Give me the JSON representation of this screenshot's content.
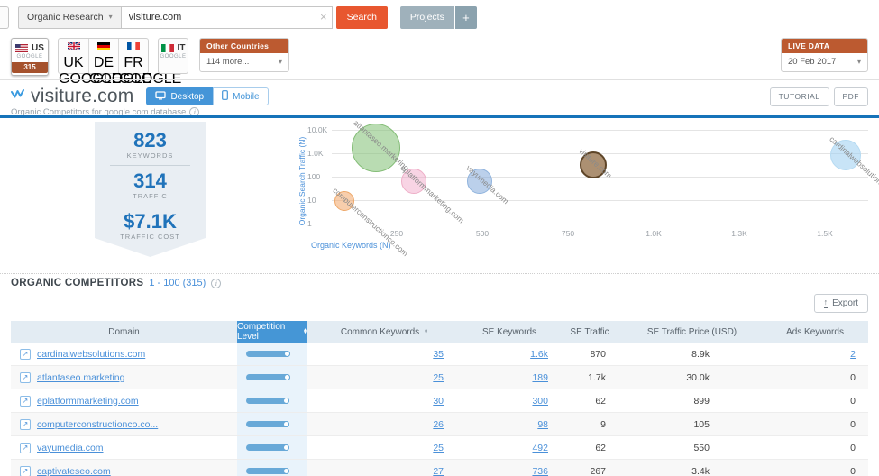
{
  "topbar": {
    "search_type_label": "Organic Research",
    "search_value": "visiture.com",
    "search_button_label": "Search",
    "projects_button_label": "Projects",
    "add_project_button_label": "+"
  },
  "countries": {
    "tabs": [
      {
        "code": "US",
        "engine": "GOOGLE",
        "badge": "315"
      },
      {
        "code": "UK",
        "engine": "GOOGLE"
      },
      {
        "code": "DE",
        "engine": "GOOGLE"
      },
      {
        "code": "FR",
        "engine": "GOOGLE"
      },
      {
        "code": "IT",
        "engine": "GOOGLE"
      }
    ],
    "other_countries_label": "Other Countries",
    "other_countries_value": "114 more...",
    "live_data_label": "LIVE DATA",
    "live_data_value": "20 Feb 2017"
  },
  "header": {
    "domain": "visiture.com",
    "device_desktop": "Desktop",
    "device_mobile": "Mobile",
    "subtitle": "Organic Competitors for google.com database",
    "tutorial_button": "TUTORIAL",
    "pdf_button": "PDF"
  },
  "overview": {
    "stats": [
      {
        "value": "823",
        "label": "KEYWORDS"
      },
      {
        "value": "314",
        "label": "TRAFFIC"
      },
      {
        "value": "$7.1K",
        "label": "TRAFFIC COST"
      }
    ]
  },
  "chart_data": {
    "type": "scatter",
    "xlabel": "Organic Keywords (N)",
    "ylabel": "Organic Search Traffic (N)",
    "x_scale": "linear",
    "y_scale": "log",
    "xlim": [
      0,
      1630
    ],
    "ylim": [
      1,
      10000
    ],
    "grid": "horizontal",
    "legend": "none",
    "x_ticks": [
      {
        "v": 250,
        "label": "250"
      },
      {
        "v": 500,
        "label": "500"
      },
      {
        "v": 750,
        "label": "750"
      },
      {
        "v": 1000,
        "label": "1.0K"
      },
      {
        "v": 1250,
        "label": "1.3K"
      },
      {
        "v": 1500,
        "label": "1.5K"
      }
    ],
    "y_ticks": [
      {
        "v": 1,
        "label": "1"
      },
      {
        "v": 10,
        "label": "10"
      },
      {
        "v": 100,
        "label": "100"
      },
      {
        "v": 1000,
        "label": "1.0K"
      },
      {
        "v": 10000,
        "label": "10.0K"
      }
    ],
    "bubbles": [
      {
        "label": "atlantaseo.marketing",
        "x": 189,
        "y": 1700,
        "r": 27,
        "fill": "rgba(128,191,115,0.55)",
        "stroke": "#84bd77",
        "highlight": false
      },
      {
        "label": "eplatformmarketing.com",
        "x": 300,
        "y": 62,
        "r": 14,
        "fill": "rgba(240,160,195,0.45)",
        "stroke": "#eeaec7",
        "highlight": false
      },
      {
        "label": "computerconstructionco.com",
        "x": 98,
        "y": 9,
        "r": 11,
        "fill": "rgba(242,158,90,0.5)",
        "stroke": "#eda768",
        "highlight": false
      },
      {
        "label": "vayumedia.com",
        "x": 492,
        "y": 62,
        "r": 14,
        "fill": "rgba(120,162,215,0.5)",
        "stroke": "#8fb3dd",
        "highlight": false
      },
      {
        "label": "visiture.com",
        "x": 823,
        "y": 314,
        "r": 15,
        "fill": "rgba(151,116,79,0.8)",
        "stroke": "#5e4528",
        "highlight": true
      },
      {
        "label": "cardinalwebsolutions.com",
        "x": 1560,
        "y": 870,
        "r": 17,
        "fill": "rgba(155,205,240,0.55)",
        "stroke": "#b5daf2",
        "highlight": false
      }
    ]
  },
  "competitors": {
    "title": "ORGANIC COMPETITORS",
    "range": "1 - 100 (315)",
    "export_label": "Export",
    "columns": [
      "Domain",
      "Competition Level",
      "Common Keywords",
      "SE Keywords",
      "SE Traffic",
      "SE Traffic Price (USD)",
      "Ads Keywords"
    ],
    "rows": [
      {
        "domain": "cardinalwebsolutions.com",
        "competition_level": 0.9,
        "common_keywords": "35",
        "se_keywords": "1.6k",
        "se_traffic": "870",
        "se_traffic_price": "8.9k",
        "ads_keywords": "2",
        "ads_keywords_link": true
      },
      {
        "domain": "atlantaseo.marketing",
        "competition_level": 0.9,
        "common_keywords": "25",
        "se_keywords": "189",
        "se_traffic": "1.7k",
        "se_traffic_price": "30.0k",
        "ads_keywords": "0",
        "ads_keywords_link": false
      },
      {
        "domain": "eplatformmarketing.com",
        "competition_level": 0.89,
        "common_keywords": "30",
        "se_keywords": "300",
        "se_traffic": "62",
        "se_traffic_price": "899",
        "ads_keywords": "0",
        "ads_keywords_link": false
      },
      {
        "domain": "computerconstructionco.co...",
        "competition_level": 0.89,
        "common_keywords": "26",
        "se_keywords": "98",
        "se_traffic": "9",
        "se_traffic_price": "105",
        "ads_keywords": "0",
        "ads_keywords_link": false
      },
      {
        "domain": "vayumedia.com",
        "competition_level": 0.88,
        "common_keywords": "25",
        "se_keywords": "492",
        "se_traffic": "62",
        "se_traffic_price": "550",
        "ads_keywords": "0",
        "ads_keywords_link": false
      },
      {
        "domain": "captivateseo.com",
        "competition_level": 0.88,
        "common_keywords": "27",
        "se_keywords": "736",
        "se_traffic": "267",
        "se_traffic_price": "3.4k",
        "ads_keywords": "0",
        "ads_keywords_link": false
      }
    ]
  },
  "icons": {
    "caret_down": "▾",
    "clear": "×",
    "sort_up": "▲",
    "sort_down": "▼",
    "external_link": "↗",
    "info": "i",
    "export_arrow": "↑",
    "add": "+"
  },
  "colors": {
    "accent_orange": "#e8572f",
    "header_orange": "#bc5a30",
    "us_badge_brown": "#a5522d",
    "brand_blue": "#4495d8",
    "link_blue": "#4a90d9",
    "stat_blue": "#2073ba",
    "blue_divider": "#1673b9",
    "table_header_bg": "#e3ecf3",
    "competition_col_bg": "#e9f3fb",
    "competition_header_bg": "#4596d6"
  }
}
